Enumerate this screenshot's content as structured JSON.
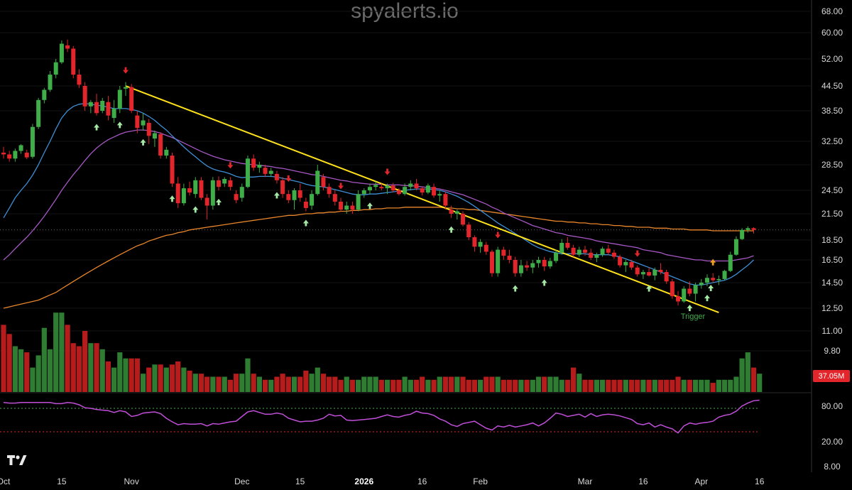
{
  "watermark": "spyalerts.io",
  "logo_text": "TV",
  "volume_label": "37.05M",
  "trigger_label": "Trigger",
  "colors": {
    "up": "#3fae49",
    "down": "#e3262b",
    "vol_up": "#2e7d32",
    "vol_down": "#b71c1c",
    "ma_fast": "#3d8fd6",
    "ma_mid": "#a657c4",
    "ma_slow": "#e9862b",
    "trend": "#ffe21a",
    "rsi": "#c04fd8",
    "buy_arrow": "#a4e8a4",
    "sell_arrow": "#e3262b",
    "special_arrow": "#f0a020"
  },
  "chart_data": {
    "type": "candlestick",
    "y_ticks": [
      "68.00",
      "60.00",
      "52.00",
      "44.50",
      "38.50",
      "32.50",
      "28.50",
      "24.50",
      "21.50",
      "18.50",
      "16.50",
      "14.50",
      "12.50",
      "11.00",
      "9.80"
    ],
    "x_ticks": [
      {
        "label": "Oct",
        "i": 0
      },
      {
        "label": "15",
        "i": 10
      },
      {
        "label": "Nov",
        "i": 22
      },
      {
        "label": "Dec",
        "i": 41
      },
      {
        "label": "15",
        "i": 51
      },
      {
        "label": "2026",
        "i": 62,
        "bold": true
      },
      {
        "label": "16",
        "i": 72
      },
      {
        "label": "Feb",
        "i": 82
      },
      {
        "label": "Mar",
        "i": 100
      },
      {
        "label": "16",
        "i": 110
      },
      {
        "label": "Apr",
        "i": 120
      },
      {
        "label": "16",
        "i": 130
      }
    ],
    "price_line": 19.6,
    "ohlc": [
      [
        30.5,
        31.5,
        29.5,
        30.2
      ],
      [
        30.2,
        30.8,
        29.0,
        29.5
      ],
      [
        29.5,
        31.2,
        29.0,
        30.8
      ],
      [
        30.8,
        32.0,
        30.3,
        31.8
      ],
      [
        30.5,
        31.0,
        29.4,
        29.7
      ],
      [
        29.8,
        35.8,
        29.5,
        35.2
      ],
      [
        35.2,
        41.5,
        34.8,
        41.0
      ],
      [
        41.0,
        44.0,
        40.2,
        43.5
      ],
      [
        43.5,
        48.5,
        43.0,
        47.5
      ],
      [
        47.5,
        52.0,
        46.5,
        51.0
      ],
      [
        51.0,
        57.5,
        50.5,
        56.5
      ],
      [
        56.0,
        57.8,
        54.0,
        55.0
      ],
      [
        55.0,
        55.8,
        46.5,
        47.5
      ],
      [
        47.5,
        49.0,
        44.0,
        44.8
      ],
      [
        44.5,
        45.5,
        38.5,
        39.5
      ],
      [
        39.5,
        41.0,
        38.0,
        40.5
      ],
      [
        40.5,
        42.5,
        37.5,
        38.0
      ],
      [
        38.5,
        41.5,
        38.0,
        40.8
      ],
      [
        40.5,
        42.0,
        36.5,
        37.5
      ],
      [
        37.0,
        41.0,
        36.0,
        39.0
      ],
      [
        39.0,
        44.5,
        38.0,
        43.5
      ],
      [
        43.8,
        45.5,
        42.0,
        44.2
      ],
      [
        44.2,
        45.0,
        38.0,
        38.5
      ],
      [
        37.5,
        38.5,
        34.0,
        35.0
      ],
      [
        35.5,
        38.0,
        34.5,
        36.5
      ],
      [
        36.0,
        36.8,
        32.0,
        33.5
      ],
      [
        33.0,
        34.5,
        31.5,
        34.0
      ],
      [
        33.8,
        34.2,
        29.5,
        30.0
      ],
      [
        30.0,
        31.5,
        29.5,
        31.0
      ],
      [
        30.0,
        30.5,
        25.0,
        25.5
      ],
      [
        25.5,
        26.5,
        22.2,
        22.8
      ],
      [
        22.8,
        25.5,
        22.5,
        24.8
      ],
      [
        24.8,
        25.8,
        23.8,
        24.2
      ],
      [
        24.0,
        26.5,
        23.5,
        26.0
      ],
      [
        26.0,
        26.5,
        23.2,
        23.5
      ],
      [
        23.5,
        24.0,
        20.8,
        22.5
      ],
      [
        22.5,
        26.5,
        22.0,
        26.0
      ],
      [
        26.0,
        26.6,
        24.5,
        25.0
      ],
      [
        25.5,
        26.5,
        25.0,
        26.2
      ],
      [
        26.0,
        26.5,
        24.5,
        25.0
      ],
      [
        24.0,
        24.5,
        22.8,
        23.2
      ],
      [
        23.5,
        25.5,
        23.0,
        25.0
      ],
      [
        25.0,
        30.0,
        24.8,
        29.5
      ],
      [
        29.5,
        30.2,
        27.5,
        28.0
      ],
      [
        28.0,
        29.0,
        27.2,
        28.5
      ],
      [
        28.0,
        28.5,
        26.5,
        27.0
      ],
      [
        27.0,
        28.0,
        26.5,
        27.5
      ],
      [
        27.0,
        27.5,
        25.5,
        26.0
      ],
      [
        26.0,
        26.5,
        23.5,
        24.0
      ],
      [
        24.0,
        24.5,
        22.8,
        23.2
      ],
      [
        23.2,
        24.8,
        22.0,
        24.5
      ],
      [
        24.5,
        25.5,
        23.0,
        23.5
      ],
      [
        23.0,
        23.5,
        21.8,
        22.2
      ],
      [
        22.5,
        24.5,
        22.0,
        24.0
      ],
      [
        24.0,
        28.5,
        23.8,
        27.5
      ],
      [
        26.5,
        27.0,
        24.5,
        25.0
      ],
      [
        25.0,
        25.5,
        23.5,
        24.0
      ],
      [
        24.0,
        24.5,
        22.5,
        23.0
      ],
      [
        23.0,
        23.5,
        21.8,
        22.0
      ],
      [
        22.0,
        23.0,
        21.5,
        22.5
      ],
      [
        22.5,
        23.0,
        21.5,
        22.0
      ],
      [
        22.0,
        24.5,
        21.8,
        24.0
      ],
      [
        24.0,
        24.8,
        23.5,
        24.5
      ],
      [
        24.5,
        25.5,
        24.0,
        25.0
      ],
      [
        25.0,
        25.8,
        24.5,
        25.3
      ],
      [
        25.0,
        25.5,
        24.5,
        24.8
      ],
      [
        24.8,
        25.5,
        24.0,
        25.2
      ],
      [
        25.2,
        25.6,
        24.2,
        24.5
      ],
      [
        24.5,
        24.8,
        23.8,
        24.0
      ],
      [
        24.0,
        25.5,
        23.8,
        25.0
      ],
      [
        25.0,
        26.0,
        24.5,
        25.5
      ],
      [
        25.5,
        26.2,
        24.5,
        24.8
      ],
      [
        24.8,
        25.0,
        23.8,
        24.2
      ],
      [
        24.2,
        25.5,
        24.0,
        25.2
      ],
      [
        25.0,
        25.5,
        23.5,
        23.8
      ],
      [
        23.8,
        24.5,
        23.0,
        24.0
      ],
      [
        24.0,
        24.3,
        22.0,
        22.5
      ],
      [
        22.0,
        22.5,
        21.0,
        21.5
      ],
      [
        21.5,
        22.0,
        20.8,
        21.8
      ],
      [
        21.5,
        21.8,
        20.0,
        20.2
      ],
      [
        20.2,
        20.5,
        18.5,
        18.8
      ],
      [
        18.8,
        19.0,
        17.3,
        17.8
      ],
      [
        17.8,
        18.6,
        17.2,
        18.3
      ],
      [
        18.0,
        18.3,
        17.0,
        17.3
      ],
      [
        17.3,
        17.5,
        15.0,
        15.3
      ],
      [
        15.3,
        17.8,
        15.0,
        17.5
      ],
      [
        17.5,
        17.8,
        16.5,
        16.9
      ],
      [
        16.9,
        17.5,
        16.2,
        16.5
      ],
      [
        16.5,
        16.8,
        15.0,
        15.3
      ],
      [
        15.3,
        16.5,
        15.0,
        16.0
      ],
      [
        16.0,
        16.4,
        15.5,
        15.8
      ],
      [
        15.8,
        16.5,
        15.3,
        16.2
      ],
      [
        16.2,
        16.8,
        15.8,
        16.5
      ],
      [
        16.5,
        16.8,
        15.5,
        15.9
      ],
      [
        15.9,
        16.7,
        15.7,
        16.4
      ],
      [
        16.4,
        17.5,
        16.2,
        17.2
      ],
      [
        17.2,
        18.6,
        17.0,
        18.2
      ],
      [
        18.2,
        18.8,
        17.5,
        17.7
      ],
      [
        17.7,
        18.0,
        16.8,
        17.0
      ],
      [
        17.0,
        17.8,
        16.8,
        17.5
      ],
      [
        17.5,
        17.9,
        16.9,
        17.2
      ],
      [
        17.2,
        17.6,
        16.5,
        16.7
      ],
      [
        16.7,
        17.2,
        16.3,
        17.0
      ],
      [
        17.0,
        17.8,
        16.8,
        17.6
      ],
      [
        17.6,
        18.0,
        17.0,
        17.2
      ],
      [
        17.2,
        17.5,
        16.6,
        16.8
      ],
      [
        16.8,
        17.0,
        15.8,
        16.0
      ],
      [
        16.0,
        16.5,
        15.4,
        16.3
      ],
      [
        16.3,
        16.5,
        15.6,
        15.8
      ],
      [
        15.8,
        16.0,
        15.0,
        15.2
      ],
      [
        15.2,
        15.6,
        14.8,
        15.4
      ],
      [
        15.4,
        15.8,
        15.0,
        15.1
      ],
      [
        15.1,
        15.8,
        14.7,
        15.6
      ],
      [
        15.6,
        16.2,
        15.2,
        15.4
      ],
      [
        15.4,
        15.6,
        14.4,
        14.6
      ],
      [
        14.6,
        14.8,
        13.2,
        13.4
      ],
      [
        13.4,
        13.8,
        12.7,
        13.0
      ],
      [
        13.0,
        14.2,
        12.9,
        14.0
      ],
      [
        14.0,
        14.6,
        13.4,
        13.6
      ],
      [
        13.6,
        14.5,
        13.0,
        14.3
      ],
      [
        14.3,
        14.8,
        14.0,
        14.5
      ],
      [
        14.5,
        15.2,
        14.2,
        14.9
      ],
      [
        14.9,
        15.3,
        14.5,
        14.7
      ],
      [
        14.7,
        15.1,
        14.3,
        14.8
      ],
      [
        14.8,
        15.6,
        14.7,
        15.5
      ],
      [
        15.5,
        17.3,
        15.4,
        17.0
      ],
      [
        17.0,
        18.9,
        16.9,
        18.6
      ],
      [
        18.6,
        19.8,
        18.5,
        19.6
      ],
      [
        19.6,
        20.0,
        19.3,
        19.8
      ],
      [
        19.8,
        19.9,
        19.2,
        19.6
      ]
    ],
    "volume": [
      22,
      19,
      15,
      14,
      13,
      8,
      12,
      21,
      14,
      26,
      26,
      22,
      16,
      15,
      20,
      16,
      16,
      14,
      10,
      8,
      13,
      11,
      11,
      11,
      6,
      8,
      9,
      9,
      8,
      9,
      10,
      8,
      7,
      6,
      6,
      5,
      5,
      5,
      5,
      4,
      6,
      6,
      11,
      6,
      5,
      4,
      4,
      5,
      6,
      5,
      5,
      5,
      7,
      6,
      8,
      6,
      5,
      5,
      4,
      5,
      4,
      4,
      5,
      5,
      5,
      4,
      4,
      4,
      4,
      5,
      4,
      4,
      5,
      4,
      4,
      5,
      5,
      5,
      5,
      5,
      4,
      4,
      4,
      5,
      5,
      5,
      4,
      4,
      4,
      4,
      4,
      4,
      5,
      5,
      5,
      5,
      4,
      4,
      8,
      6,
      4,
      4,
      4,
      4,
      4,
      4,
      4,
      4,
      4,
      4,
      4,
      4,
      4,
      4,
      4,
      4,
      5,
      4,
      4,
      4,
      4,
      4,
      3,
      4,
      4,
      4,
      5,
      11,
      13,
      8,
      6
    ],
    "ma_fast": [
      21.0,
      22.2,
      23.5,
      24.5,
      25.5,
      26.8,
      28.5,
      30.5,
      32.5,
      34.8,
      37.0,
      38.5,
      39.5,
      40.0,
      40.2,
      40.0,
      39.8,
      39.6,
      39.3,
      39.0,
      39.0,
      39.0,
      38.8,
      38.5,
      38.0,
      37.3,
      36.5,
      35.5,
      34.6,
      33.5,
      32.5,
      31.5,
      30.6,
      29.8,
      29.0,
      28.3,
      27.8,
      27.5,
      27.3,
      27.0,
      26.6,
      26.4,
      26.5,
      26.5,
      26.6,
      26.6,
      26.6,
      26.5,
      26.3,
      26.1,
      25.9,
      25.7,
      25.4,
      25.2,
      25.1,
      25.0,
      24.8,
      24.6,
      24.4,
      24.2,
      24.0,
      23.9,
      23.9,
      24.0,
      24.0,
      24.1,
      24.2,
      24.3,
      24.4,
      24.5,
      24.6,
      24.7,
      24.7,
      24.7,
      24.6,
      24.5,
      24.3,
      24.0,
      23.7,
      23.3,
      22.9,
      22.4,
      21.9,
      21.4,
      20.9,
      20.4,
      20.0,
      19.6,
      19.2,
      18.8,
      18.4,
      18.0,
      17.7,
      17.5,
      17.3,
      17.2,
      17.1,
      17.1,
      17.1,
      17.1,
      17.1,
      17.0,
      17.0,
      17.0,
      17.0,
      16.9,
      16.8,
      16.6,
      16.4,
      16.2,
      16.0,
      15.8,
      15.6,
      15.4,
      15.2,
      15.0,
      14.8,
      14.6,
      14.4,
      14.3,
      14.3,
      14.4,
      14.5,
      14.6,
      14.7,
      14.9,
      15.2,
      15.6,
      16.0,
      16.5
    ],
    "ma_mid": [
      16.5,
      17.0,
      17.6,
      18.2,
      18.8,
      19.5,
      20.3,
      21.2,
      22.2,
      23.3,
      24.5,
      25.7,
      26.9,
      28.0,
      29.2,
      30.3,
      31.3,
      32.1,
      32.8,
      33.3,
      33.8,
      34.2,
      34.4,
      34.6,
      34.6,
      34.5,
      34.3,
      34.0,
      33.6,
      33.2,
      32.7,
      32.2,
      31.7,
      31.2,
      30.7,
      30.3,
      29.9,
      29.6,
      29.3,
      29.1,
      28.9,
      28.7,
      28.6,
      28.5,
      28.4,
      28.3,
      28.2,
      28.0,
      27.9,
      27.7,
      27.5,
      27.3,
      27.1,
      26.9,
      26.8,
      26.6,
      26.4,
      26.2,
      26.0,
      25.9,
      25.7,
      25.6,
      25.5,
      25.4,
      25.4,
      25.4,
      25.3,
      25.3,
      25.3,
      25.2,
      25.2,
      25.1,
      25.0,
      24.9,
      24.8,
      24.7,
      24.5,
      24.3,
      24.1,
      23.9,
      23.6,
      23.3,
      23.0,
      22.7,
      22.3,
      22.0,
      21.6,
      21.3,
      21.0,
      20.7,
      20.4,
      20.1,
      19.9,
      19.7,
      19.5,
      19.3,
      19.2,
      19.0,
      18.9,
      18.8,
      18.7,
      18.6,
      18.4,
      18.3,
      18.2,
      18.1,
      18.0,
      17.9,
      17.8,
      17.7,
      17.5,
      17.4,
      17.3,
      17.2,
      17.0,
      16.9,
      16.8,
      16.7,
      16.6,
      16.5,
      16.5,
      16.4,
      16.4,
      16.4,
      16.4,
      16.4,
      16.5,
      16.6,
      16.7,
      16.9
    ],
    "ma_slow": [
      12.5,
      12.6,
      12.7,
      12.8,
      12.9,
      13.0,
      13.1,
      13.3,
      13.5,
      13.7,
      14.0,
      14.3,
      14.6,
      14.9,
      15.2,
      15.5,
      15.8,
      16.1,
      16.4,
      16.7,
      17.0,
      17.3,
      17.6,
      17.9,
      18.1,
      18.4,
      18.6,
      18.8,
      19.0,
      19.1,
      19.3,
      19.4,
      19.6,
      19.7,
      19.8,
      19.9,
      20.0,
      20.1,
      20.2,
      20.3,
      20.4,
      20.5,
      20.6,
      20.7,
      20.8,
      20.9,
      21.0,
      21.1,
      21.2,
      21.3,
      21.3,
      21.4,
      21.5,
      21.5,
      21.6,
      21.6,
      21.7,
      21.7,
      21.8,
      21.8,
      21.9,
      21.9,
      22.0,
      22.0,
      22.1,
      22.1,
      22.2,
      22.2,
      22.2,
      22.3,
      22.3,
      22.3,
      22.3,
      22.3,
      22.3,
      22.3,
      22.2,
      22.2,
      22.1,
      22.1,
      22.0,
      22.0,
      21.9,
      21.8,
      21.7,
      21.6,
      21.5,
      21.4,
      21.3,
      21.2,
      21.1,
      21.0,
      20.9,
      20.8,
      20.7,
      20.6,
      20.6,
      20.5,
      20.5,
      20.4,
      20.4,
      20.3,
      20.3,
      20.2,
      20.2,
      20.1,
      20.1,
      20.0,
      20.0,
      19.9,
      19.9,
      19.9,
      19.8,
      19.8,
      19.8,
      19.7,
      19.7,
      19.7,
      19.6,
      19.6,
      19.6,
      19.6,
      19.5,
      19.5,
      19.5,
      19.5,
      19.5,
      19.5,
      19.5,
      19.5
    ],
    "trendline": [
      {
        "i": 21,
        "v": 44.5
      },
      {
        "i": 123,
        "v": 12.2
      }
    ],
    "buy_arrows": [
      16,
      20,
      24,
      29,
      33,
      37,
      47,
      52,
      63,
      77,
      88,
      93,
      111,
      118,
      121
    ],
    "sell_arrows": [
      21,
      39,
      49,
      58,
      66,
      85,
      109
    ],
    "special_arrow": 122,
    "trigger_index": 122,
    "rsi_ticks": [
      "80.00",
      "20.00",
      "8.00"
    ],
    "rsi_levels": [
      70,
      30
    ],
    "rsi": [
      80,
      79,
      79,
      80,
      80,
      80,
      80,
      80,
      80,
      78,
      78,
      80,
      79,
      76,
      71,
      70,
      68,
      67,
      66,
      63,
      66,
      64,
      56,
      58,
      62,
      63,
      64,
      61,
      53,
      47,
      42,
      44,
      43,
      43,
      44,
      40,
      44,
      43,
      45,
      47,
      48,
      56,
      64,
      66,
      63,
      60,
      60,
      62,
      60,
      53,
      50,
      47,
      48,
      48,
      50,
      53,
      60,
      57,
      58,
      50,
      49,
      50,
      51,
      52,
      53,
      56,
      59,
      56,
      55,
      58,
      60,
      65,
      62,
      61,
      58,
      52,
      48,
      42,
      39,
      44,
      46,
      48,
      42,
      36,
      33,
      40,
      38,
      41,
      38,
      40,
      42,
      45,
      40,
      45,
      53,
      62,
      60,
      56,
      58,
      60,
      55,
      61,
      56,
      59,
      60,
      59,
      57,
      54,
      51,
      44,
      42,
      45,
      38,
      42,
      38,
      35,
      28,
      40,
      45,
      43,
      45,
      46,
      48,
      55,
      58,
      60,
      65,
      74,
      79,
      83,
      84
    ]
  }
}
